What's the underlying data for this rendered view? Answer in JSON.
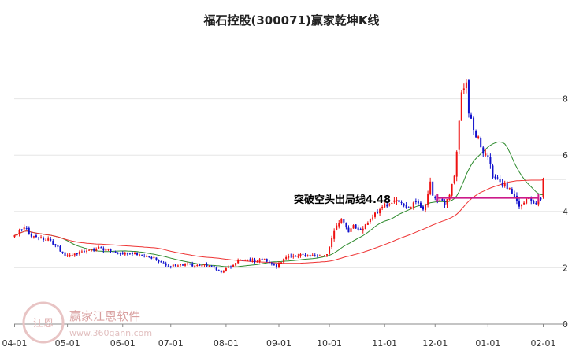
{
  "chart_data": {
    "type": "candlestick",
    "title": "福石控股(300071)赢家乾坤K线",
    "xlabel": "",
    "ylabel": "",
    "ylim": [
      0,
      9.7
    ],
    "y_ticks": [
      {
        "value": 0,
        "label": "0"
      },
      {
        "value": 2,
        "label": "2"
      },
      {
        "value": 4,
        "label": "4"
      },
      {
        "value": 6,
        "label": "6"
      },
      {
        "value": 8,
        "label": "8"
      }
    ],
    "x_ticks": [
      "04-01",
      "05-01",
      "06-01",
      "07-01",
      "08-01",
      "09-01",
      "10-01",
      "11-01",
      "12-01",
      "01-01",
      "02-01"
    ],
    "grid": "horizontal",
    "colors": {
      "up": "#ee1111",
      "down": "#1010cc",
      "ma_short": "#2e8b2e",
      "ma_long": "#ee3333",
      "signal_line": "#cc1a8a",
      "ref_line": "#555555",
      "grid": "#e6e6e6"
    },
    "close_anchors": [
      [
        "04-01",
        3.15
      ],
      [
        "04-05",
        3.45
      ],
      [
        "04-10",
        3.1
      ],
      [
        "04-20",
        3.0
      ],
      [
        "04-25",
        2.7
      ],
      [
        "04-30",
        2.45
      ],
      [
        "05-10",
        2.55
      ],
      [
        "05-20",
        2.7
      ],
      [
        "05-30",
        2.55
      ],
      [
        "06-10",
        2.5
      ],
      [
        "06-20",
        2.35
      ],
      [
        "06-30",
        2.05
      ],
      [
        "07-10",
        2.15
      ],
      [
        "07-15",
        2.05
      ],
      [
        "07-20",
        2.1
      ],
      [
        "07-25",
        2.0
      ],
      [
        "07-30",
        1.85
      ],
      [
        "08-05",
        2.05
      ],
      [
        "08-10",
        2.3
      ],
      [
        "08-20",
        2.25
      ],
      [
        "08-25",
        2.3
      ],
      [
        "08-31",
        2.05
      ],
      [
        "09-05",
        2.4
      ],
      [
        "09-15",
        2.45
      ],
      [
        "09-25",
        2.4
      ],
      [
        "09-30",
        2.45
      ],
      [
        "10-03",
        3.3
      ],
      [
        "10-08",
        3.8
      ],
      [
        "10-12",
        3.3
      ],
      [
        "10-15",
        3.5
      ],
      [
        "10-20",
        3.35
      ],
      [
        "10-25",
        3.8
      ],
      [
        "10-28",
        3.9
      ],
      [
        "10-31",
        4.2
      ],
      [
        "11-10",
        4.35
      ],
      [
        "11-15",
        4.1
      ],
      [
        "11-20",
        4.35
      ],
      [
        "11-25",
        4.0
      ],
      [
        "11-28",
        5.0
      ],
      [
        "11-30",
        4.5
      ],
      [
        "12-05",
        4.4
      ],
      [
        "12-08",
        4.2
      ],
      [
        "12-10",
        4.6
      ],
      [
        "12-12",
        5.3
      ],
      [
        "12-14",
        6.1
      ],
      [
        "12-17",
        8.2
      ],
      [
        "12-19",
        8.7
      ],
      [
        "12-22",
        7.5
      ],
      [
        "12-24",
        6.9
      ],
      [
        "12-26",
        6.6
      ],
      [
        "12-29",
        6.3
      ],
      [
        "01-02",
        5.7
      ],
      [
        "01-05",
        5.2
      ],
      [
        "01-10",
        4.95
      ],
      [
        "01-15",
        4.65
      ],
      [
        "01-20",
        4.15
      ],
      [
        "01-25",
        4.45
      ],
      [
        "01-28",
        4.25
      ],
      [
        "01-31",
        4.5
      ]
    ],
    "last_bar": {
      "open": 4.5,
      "close": 5.15,
      "high": 5.2,
      "low": 4.45
    },
    "ref_level": 5.15,
    "signal": {
      "label": "突破空头出局线4.48",
      "value": 4.48,
      "from": "12-03",
      "to": "01-30"
    },
    "series": [
      {
        "name": "",
        "window": 20,
        "color_key": "ma_short"
      },
      {
        "name": "",
        "window": 60,
        "color_key": "ma_long"
      }
    ]
  },
  "watermark": {
    "name": "赢家江恩软件",
    "url": "www.360gann.com",
    "seal": "江恩"
  }
}
